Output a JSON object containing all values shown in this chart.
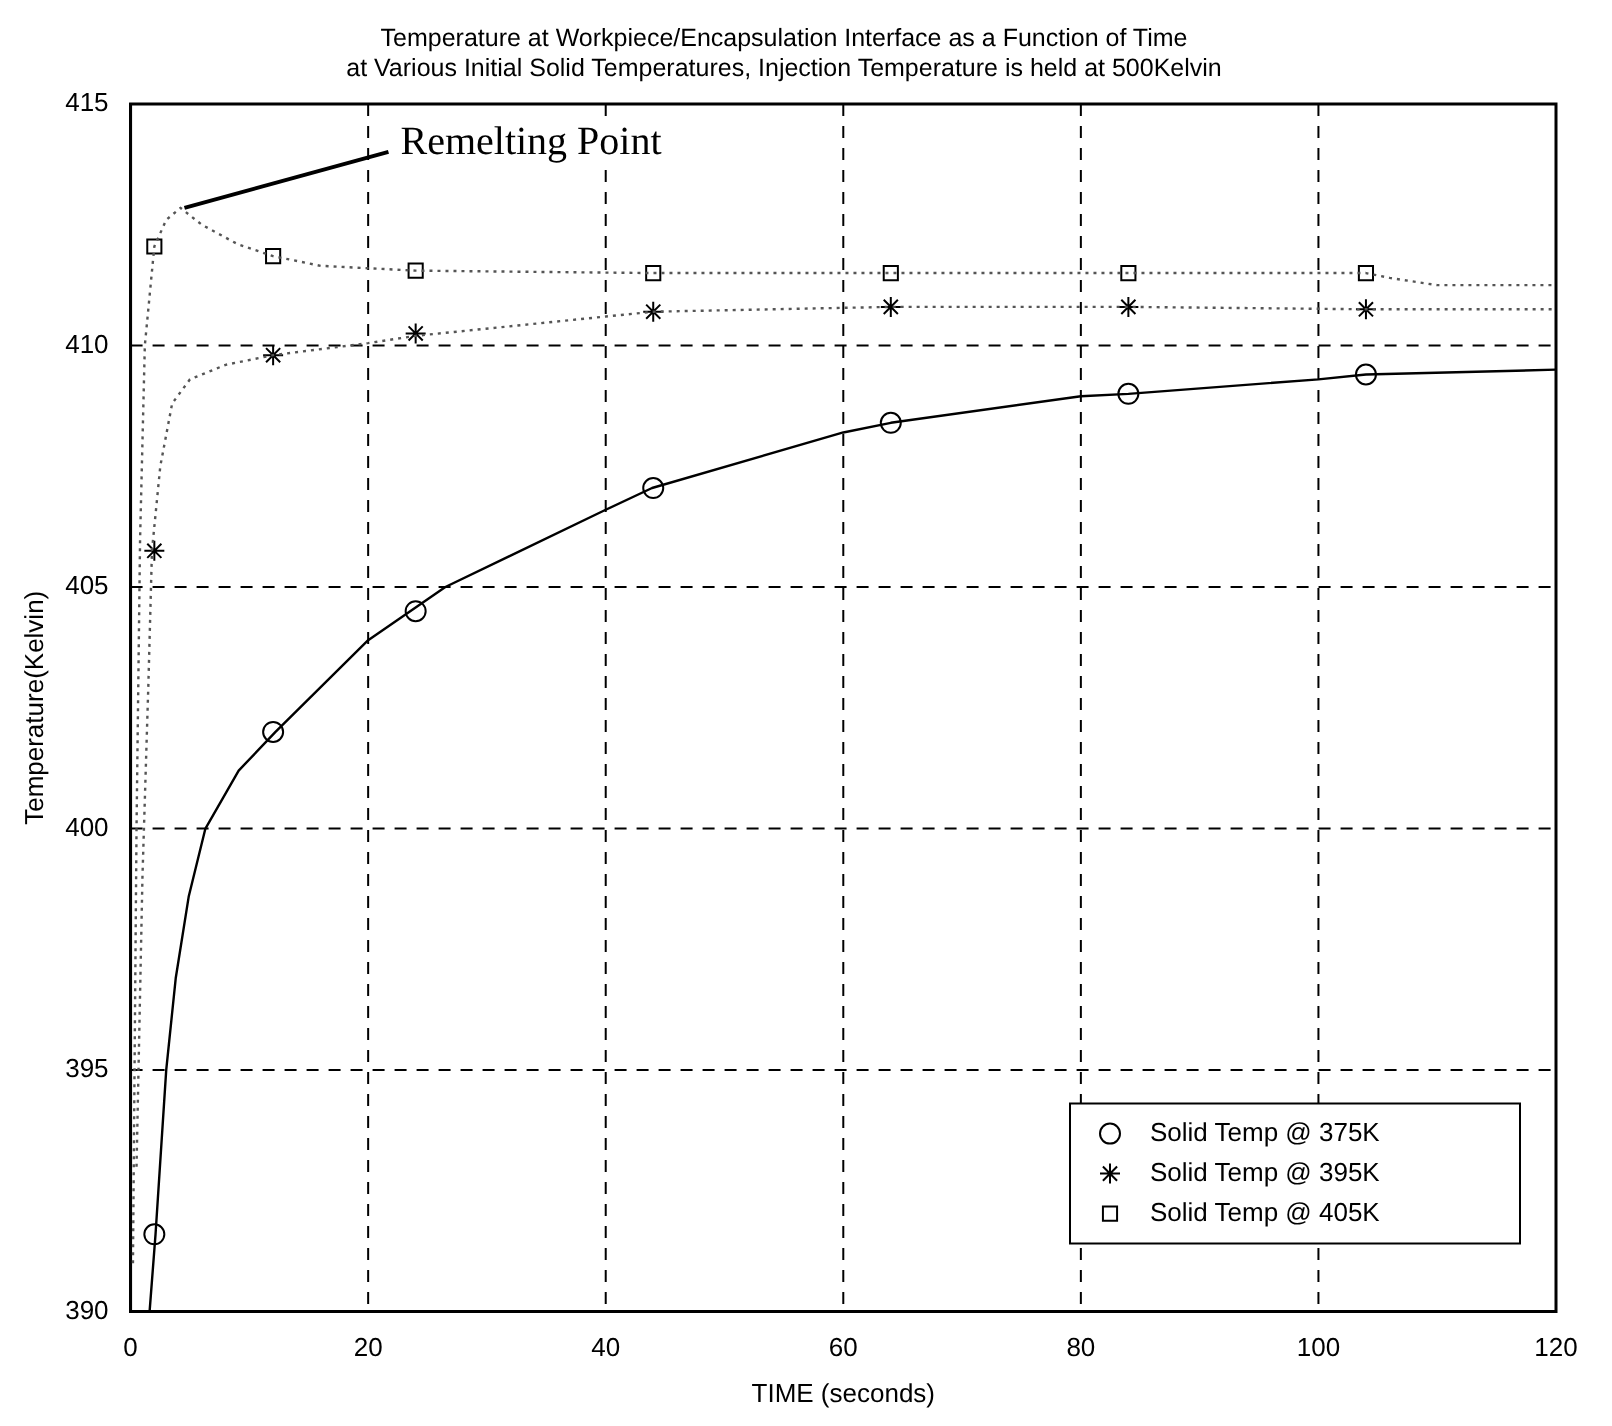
{
  "chart_data": {
    "type": "line",
    "title": "Temperature at Workpiece/Encapsulation Interface as a Function of Time\nat Various Initial Solid Temperatures, Injection Temperature is held at 500Kelvin",
    "xlabel": "TIME (seconds)",
    "ylabel": "Temperature(Kelvin)",
    "xlim": [
      0,
      120
    ],
    "xticks": [
      0,
      20,
      40,
      60,
      80,
      100,
      120
    ],
    "ylim": [
      390,
      415
    ],
    "yticks": [
      390,
      395,
      400,
      405,
      410,
      415
    ],
    "grid": true,
    "legend": "bottom right",
    "annotations": [
      {
        "text": "Remelting Point",
        "x": 4.2,
        "y": 412.85
      }
    ],
    "series": [
      {
        "type": "line",
        "color": "#000000",
        "line_style": "solid",
        "marker": "none",
        "x": [
          1.6,
          2.1,
          3,
          3.8,
          4.9,
          6.3,
          9.1,
          12.2,
          20,
          26.5,
          40,
          43.9,
          60,
          64,
          80,
          84,
          100,
          104,
          120
        ],
        "values": [
          390,
          391.6,
          395,
          396.9,
          398.6,
          400,
          401.2,
          402,
          403.9,
          405,
          406.6,
          407.05,
          408.2,
          408.4,
          408.95,
          409,
          409.3,
          409.4,
          409.5
        ]
      },
      {
        "type": "line",
        "color": "#555555",
        "line_style": "dotted",
        "marker": "none",
        "x": [
          0.5,
          1,
          1.5,
          1.8,
          2.5,
          3.5,
          5,
          8,
          12,
          20,
          24,
          40,
          44,
          64,
          84,
          104,
          120
        ],
        "values": [
          393,
          399,
          403,
          405.75,
          407.5,
          408.8,
          409.3,
          409.6,
          409.8,
          410.05,
          410.2,
          410.6,
          410.7,
          410.8,
          410.8,
          410.75,
          410.75
        ]
      },
      {
        "type": "line",
        "color": "#555555",
        "line_style": "dotted",
        "marker": "none",
        "x": [
          0.2,
          0.5,
          0.8,
          1.2,
          2,
          3,
          4.2,
          6,
          9,
          12,
          16,
          24,
          44,
          64,
          84,
          104,
          106,
          110,
          120
        ],
        "values": [
          391,
          400,
          406,
          410,
          412.05,
          412.6,
          412.85,
          412.5,
          412.1,
          411.85,
          411.65,
          411.55,
          411.5,
          411.5,
          411.5,
          411.5,
          411.4,
          411.25,
          411.25
        ]
      },
      {
        "type": "scatter",
        "name": "Solid Temp @ 375K",
        "color": "#000000",
        "marker": "circle",
        "x": [
          2,
          12,
          24,
          44,
          64,
          84,
          104
        ],
        "values": [
          391.6,
          402,
          404.5,
          407.05,
          408.4,
          409,
          409.4
        ]
      },
      {
        "type": "scatter",
        "name": "Solid Temp @ 395K",
        "color": "#000000",
        "marker": "cross",
        "x": [
          2,
          12,
          24,
          44,
          64,
          84,
          104
        ],
        "values": [
          405.75,
          409.8,
          410.25,
          410.7,
          410.8,
          410.8,
          410.75
        ]
      },
      {
        "type": "scatter",
        "name": "Solid Temp @ 405K",
        "color": "#000000",
        "marker": "square",
        "x": [
          2,
          12,
          24,
          44,
          64,
          84,
          104
        ],
        "values": [
          412.05,
          411.85,
          411.55,
          411.5,
          411.5,
          411.5,
          411.5
        ]
      }
    ]
  }
}
